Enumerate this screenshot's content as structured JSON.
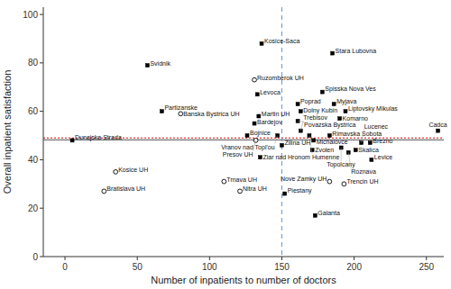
{
  "chart_data": {
    "type": "scatter",
    "xlabel": "Number of inpatients to number of doctors",
    "ylabel": "Overall inpatient satisfaction",
    "xlim": [
      -15,
      262
    ],
    "ylim": [
      0,
      103
    ],
    "xticks": [
      0,
      50,
      100,
      150,
      200,
      250
    ],
    "yticks": [
      0,
      20,
      40,
      60,
      80,
      100
    ],
    "grid": false,
    "reference_lines": [
      {
        "axis": "y",
        "value": 48.2,
        "color": "#555555",
        "line_style": "solid"
      },
      {
        "axis": "y",
        "value": 49.0,
        "color": "#dd0000",
        "line_style": "dotted"
      },
      {
        "axis": "x",
        "value": 150,
        "color": "#6699cc",
        "line_style": "dashed"
      }
    ],
    "series": [
      {
        "marker": "square",
        "color": "#000000",
        "x": [
          57,
          67,
          5,
          136,
          134,
          131,
          126,
          133,
          147,
          150,
          135,
          152,
          161,
          163,
          161,
          163,
          169,
          172,
          171,
          178,
          185,
          183,
          186,
          194,
          190,
          191,
          196,
          201,
          205,
          211,
          212,
          258,
          173
        ],
        "values": [
          79,
          60,
          48,
          88,
          58,
          55,
          50,
          67,
          50,
          46,
          41,
          26,
          63,
          60,
          56,
          52,
          50,
          48,
          44,
          68,
          84,
          50,
          63,
          60,
          57,
          45,
          43,
          44,
          47,
          47,
          40,
          52,
          17
        ],
        "labels": [
          "Svidnik",
          "Partizanske",
          "Dunajska Strada",
          "Kosice-Saca",
          "Martin UH",
          "Bardejov",
          "Bojnice",
          "Levoca",
          "Vranov nad Topl'ou",
          "Zilina UH",
          "Ziar nad Hronom",
          "Piestany",
          "Poprad",
          "Dolny Kubin",
          "Povazska Bystrica",
          "Trebisov",
          "Humenne",
          "Michalovce",
          "Zvolen",
          "Spisska Nova Ves",
          "Stara Lubovna",
          "Rimavska Sobota",
          "Myjava",
          "Liptovsky Mikulas",
          "Komarno",
          "Topolcany",
          "Roznava",
          "Skalica",
          "Lucenec",
          "Brezno",
          "Levice",
          "Cadca",
          "Galanta"
        ]
      },
      {
        "marker": "open-circle",
        "color": "#000000",
        "x": [
          35,
          27,
          80,
          110,
          121,
          131,
          132,
          183,
          193
        ],
        "values": [
          35,
          27,
          59,
          31,
          27,
          73,
          48,
          31,
          30
        ],
        "labels": [
          "Kosice UH",
          "Bratislava UH",
          "Banska Bystrica UH",
          "Trnava UH",
          "Nitra UH",
          "Ruzomberok UH",
          "Presov UH",
          "Nove Zamky UH",
          "Trencin UH"
        ]
      }
    ]
  }
}
